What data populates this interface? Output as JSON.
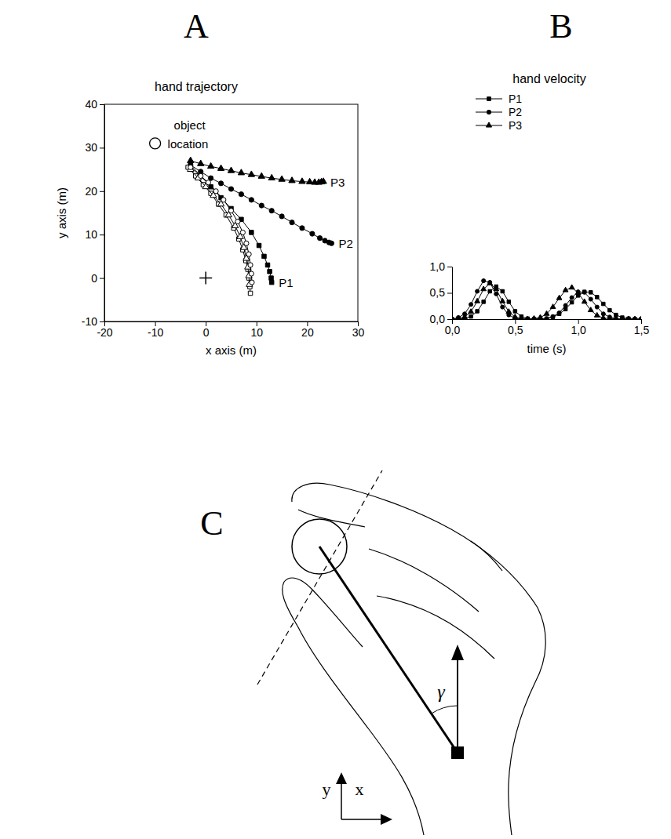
{
  "chart_data": [
    {
      "panel": "A",
      "type": "scatter",
      "title": "hand trajectory",
      "x_label": "x axis (m)",
      "y_label": "y axis (m)",
      "xlim": [
        -20,
        30
      ],
      "xticks": [
        -20,
        -10,
        0,
        10,
        20,
        30
      ],
      "ylim": [
        -10,
        40
      ],
      "yticks": [
        -10,
        0,
        10,
        20,
        30,
        40
      ],
      "series": [
        {
          "name": "P1",
          "marker": "square",
          "line_style": "solid",
          "color": "#000000",
          "x": [
            -3,
            -1,
            1,
            3,
            5,
            7,
            9,
            10.5,
            11.5,
            12.2,
            12.6,
            12.9,
            13
          ],
          "y": [
            26,
            23.5,
            21,
            18.5,
            16,
            13.5,
            10.5,
            7.5,
            5,
            3,
            1.5,
            0,
            -1
          ]
        },
        {
          "name": "P2",
          "marker": "circle",
          "line_style": "solid",
          "color": "#000000",
          "x": [
            -3,
            -1,
            1,
            3,
            5,
            7,
            9,
            11,
            13,
            15,
            17,
            19,
            21,
            22.5,
            23.5,
            24.3,
            24.8
          ],
          "y": [
            26,
            24.5,
            23,
            21.8,
            20.5,
            19.3,
            18,
            16.7,
            15.5,
            14.2,
            12.8,
            11.5,
            10.2,
            9.2,
            8.6,
            8.2,
            8
          ]
        },
        {
          "name": "P3",
          "marker": "triangle",
          "line_style": "solid",
          "color": "#000000",
          "x": [
            -3,
            -1,
            1,
            3,
            5,
            7,
            9,
            11,
            13,
            15,
            17,
            19,
            20.5,
            21.5,
            22.3,
            22.8,
            23.2
          ],
          "y": [
            27,
            26.3,
            25.7,
            25.2,
            24.7,
            24.2,
            23.8,
            23.4,
            23,
            22.7,
            22.4,
            22.2,
            22.1,
            22,
            22,
            22.1,
            22.2
          ]
        },
        {
          "marker": "square-open",
          "line_style": "solid",
          "color": "#000000",
          "x": [
            -3.5,
            -2,
            -0.5,
            1,
            2.5,
            4,
            5.5,
            6.5,
            7.3,
            7.9,
            8.3,
            8.5,
            8.7,
            8.8
          ],
          "y": [
            25.5,
            23.5,
            21.5,
            19.5,
            17,
            14.5,
            11.5,
            9,
            6.5,
            4,
            2,
            0,
            -2,
            -3.5
          ]
        },
        {
          "marker": "triangle-open",
          "line_style": "solid",
          "color": "#000000",
          "x": [
            -3,
            -1.5,
            0,
            1.5,
            3,
            4.5,
            5.8,
            6.8,
            7.5,
            8,
            8.3,
            8.5,
            8.6
          ],
          "y": [
            25,
            23,
            21,
            19,
            17,
            14.5,
            12,
            9.5,
            7,
            4.5,
            2.5,
            0.5,
            -1.5
          ]
        },
        {
          "marker": "circle-open",
          "line_style": "solid",
          "color": "#000000",
          "x": [
            -3,
            -1,
            0.5,
            2,
            3.5,
            5,
            6.3,
            7.3,
            8,
            8.5,
            8.8,
            9,
            9.1
          ],
          "y": [
            25.5,
            23.5,
            22,
            20,
            18,
            15.5,
            13,
            10.5,
            8,
            5.5,
            3,
            1,
            -1
          ]
        }
      ],
      "markers": [
        {
          "marker": "circle-open",
          "x": -10,
          "y": 31,
          "label": "object location"
        },
        {
          "marker": "cross",
          "x": 0,
          "y": 0
        }
      ]
    },
    {
      "panel": "B",
      "type": "line",
      "title": "hand velocity",
      "x_label": "time (s)",
      "legend": "top",
      "xlim": [
        0,
        1.5
      ],
      "xticks": [
        {
          "value": 0,
          "label": "0,0"
        },
        {
          "value": 0.5,
          "label": "0,5"
        },
        {
          "value": 1,
          "label": "1,0"
        },
        {
          "value": 1.5,
          "label": "1,5"
        }
      ],
      "ylim": [
        0,
        1
      ],
      "yticks": [
        {
          "value": 0,
          "label": "0,0"
        },
        {
          "value": 0.5,
          "label": "0,5"
        },
        {
          "value": 1,
          "label": "1,0"
        }
      ],
      "x": [
        0,
        0.05,
        0.1,
        0.15,
        0.2,
        0.25,
        0.3,
        0.35,
        0.4,
        0.45,
        0.5,
        0.55,
        0.6,
        0.65,
        0.7,
        0.75,
        0.8,
        0.85,
        0.9,
        0.95,
        1.0,
        1.05,
        1.1,
        1.15,
        1.2,
        1.25,
        1.3,
        1.35,
        1.4,
        1.45,
        1.5
      ],
      "series": [
        {
          "name": "P1",
          "marker": "square",
          "color": "#000000",
          "values": [
            0,
            0,
            0.01,
            0.05,
            0.15,
            0.33,
            0.53,
            0.62,
            0.53,
            0.33,
            0.15,
            0.05,
            0.01,
            0,
            0,
            0.01,
            0.04,
            0.1,
            0.19,
            0.32,
            0.45,
            0.52,
            0.51,
            0.42,
            0.29,
            0.17,
            0.08,
            0.03,
            0.01,
            0,
            0
          ]
        },
        {
          "name": "P2",
          "marker": "circle",
          "color": "#000000",
          "values": [
            0,
            0.03,
            0.1,
            0.28,
            0.53,
            0.73,
            0.7,
            0.48,
            0.23,
            0.08,
            0.02,
            0,
            0,
            0,
            0,
            0.01,
            0.05,
            0.12,
            0.26,
            0.41,
            0.52,
            0.51,
            0.38,
            0.23,
            0.1,
            0.04,
            0.01,
            0,
            0,
            0,
            0
          ]
        },
        {
          "name": "P3",
          "marker": "triangle",
          "color": "#000000",
          "values": [
            0,
            0.01,
            0.04,
            0.14,
            0.34,
            0.57,
            0.68,
            0.57,
            0.34,
            0.14,
            0.04,
            0.01,
            0,
            0.01,
            0.03,
            0.1,
            0.23,
            0.4,
            0.55,
            0.6,
            0.5,
            0.33,
            0.17,
            0.07,
            0.02,
            0.01,
            0,
            0,
            0,
            0,
            0
          ]
        }
      ]
    }
  ],
  "diagram": {
    "panel": "C",
    "angle_label": "γ",
    "axis_labels": {
      "y": "y",
      "x": "x"
    }
  }
}
